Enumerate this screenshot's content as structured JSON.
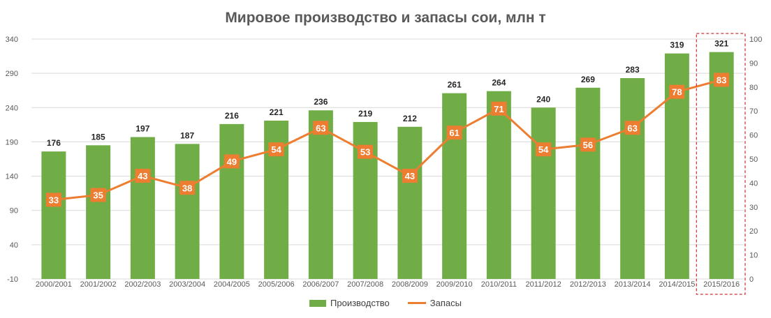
{
  "chart_data": {
    "type": "bar",
    "title": "Мировое производство и запасы сои, млн  т",
    "categories": [
      "2000/2001",
      "2001/2002",
      "2002/2003",
      "2003/2004",
      "2004/2005",
      "2005/2006",
      "2006/2007",
      "2007/2008",
      "2008/2009",
      "2009/2010",
      "2010/2011",
      "2011/2012",
      "2012/2013",
      "2013/2014",
      "2014/2015",
      "2015/2016"
    ],
    "series": [
      {
        "name": "Производство",
        "type": "bar",
        "axis": "left",
        "color": "#70AD47",
        "values": [
          176,
          185,
          197,
          187,
          216,
          221,
          236,
          219,
          212,
          261,
          264,
          240,
          269,
          283,
          319,
          321
        ]
      },
      {
        "name": "Запасы",
        "type": "line",
        "axis": "right",
        "color": "#ED7D31",
        "values": [
          33,
          35,
          43,
          38,
          49,
          54,
          63,
          53,
          43,
          61,
          71,
          54,
          56,
          63,
          78,
          83
        ]
      }
    ],
    "ylim_left": [
      -10,
      340
    ],
    "yticks_left": [
      -10,
      40,
      90,
      140,
      190,
      240,
      290,
      340
    ],
    "ylim_right": [
      0,
      100
    ],
    "yticks_right": [
      0,
      10,
      20,
      30,
      40,
      50,
      60,
      70,
      80,
      90,
      100
    ],
    "grid": true,
    "legend_position": "bottom",
    "highlight": {
      "category": "2015/2016",
      "style": "dashed-box",
      "color": "#C00000"
    }
  }
}
